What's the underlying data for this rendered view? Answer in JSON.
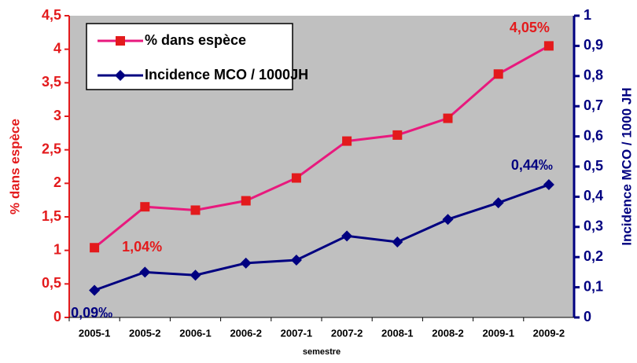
{
  "chart_data": {
    "type": "line",
    "categories": [
      "2005-1",
      "2005-2",
      "2006-1",
      "2006-2",
      "2007-1",
      "2007-2",
      "2008-1",
      "2008-2",
      "2009-1",
      "2009-2"
    ],
    "xlabel": "semestre",
    "ylabel": "% dans espèce",
    "y2label": "Incidence MCO / 1000 JH",
    "ylim": [
      0,
      4.5
    ],
    "yticks": [
      0,
      {
        "value": 0.5,
        "label": "0,5"
      },
      1,
      {
        "value": 1.5,
        "label": "1,5"
      },
      2,
      {
        "value": 2.5,
        "label": "2,5"
      },
      3,
      {
        "value": 3.5,
        "label": "3,5"
      },
      4,
      {
        "value": 4.5,
        "label": "4,5"
      }
    ],
    "y2lim": [
      0,
      1
    ],
    "y2ticks": [
      0,
      {
        "value": 0.1,
        "label": "0,1"
      },
      {
        "value": 0.2,
        "label": "0,2"
      },
      {
        "value": 0.3,
        "label": "0,3"
      },
      {
        "value": 0.4,
        "label": "0,4"
      },
      {
        "value": 0.5,
        "label": "0,5"
      },
      {
        "value": 0.6,
        "label": "0,6"
      },
      {
        "value": 0.7,
        "label": "0,7"
      },
      {
        "value": 0.8,
        "label": "0,8"
      },
      {
        "value": 0.9,
        "label": "0,9"
      },
      1
    ],
    "legend": "upper left",
    "series": [
      {
        "name": "% dans espèce",
        "color": "#e8197d",
        "marker_color": "#e31a1c",
        "marker": "square",
        "values": [
          1.04,
          1.65,
          1.6,
          1.74,
          2.08,
          2.63,
          2.72,
          2.97,
          3.63,
          4.05
        ],
        "value_labels": [
          "1,04%",
          null,
          null,
          null,
          null,
          null,
          null,
          null,
          null,
          "4,05%"
        ]
      },
      {
        "name": "Incidence MCO / 1000JH",
        "color": "#000080",
        "marker_color": "#000080",
        "marker": "diamond",
        "axis": "y2",
        "values": [
          0.09,
          0.15,
          0.14,
          0.18,
          0.19,
          0.27,
          0.25,
          0.325,
          0.38,
          0.44
        ],
        "value_labels": [
          "0,09‰",
          null,
          null,
          null,
          null,
          null,
          null,
          null,
          null,
          "0,44‰"
        ]
      }
    ]
  }
}
